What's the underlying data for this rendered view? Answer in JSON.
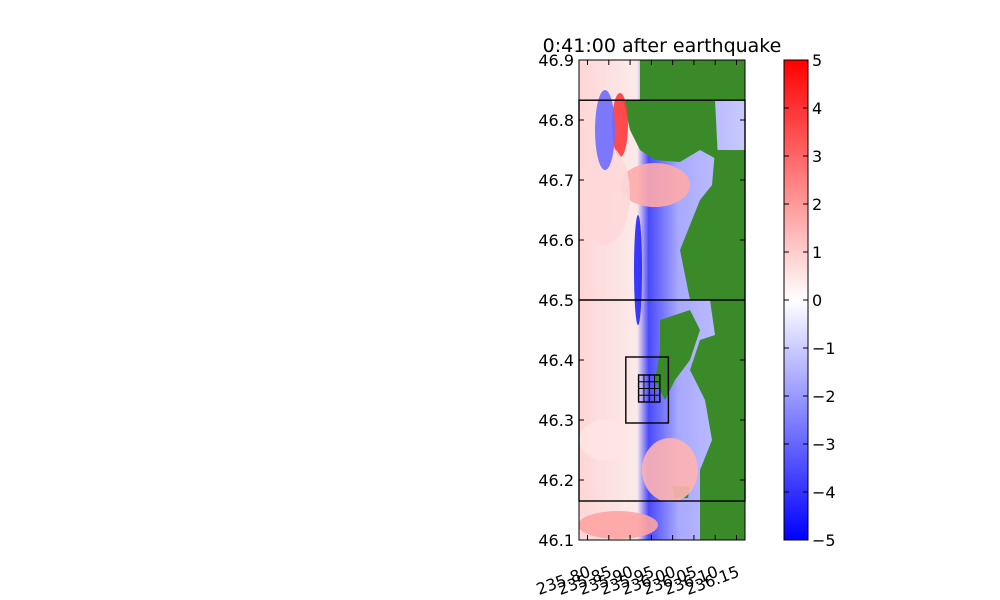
{
  "chart_data": {
    "type": "heatmap",
    "title": "0:41:00 after earthquake",
    "xlabel": "",
    "ylabel": "",
    "xlim": [
      235.78,
      236.17
    ],
    "ylim": [
      46.1,
      46.9
    ],
    "x_ticks": [
      "235.80",
      "235.85",
      "235.90",
      "235.95",
      "236.00",
      "236.05",
      "236.10",
      "236.15"
    ],
    "x_tick_values": [
      235.8,
      235.85,
      235.9,
      235.95,
      236.0,
      236.05,
      236.1,
      236.15
    ],
    "y_ticks": [
      "46.1",
      "46.2",
      "46.3",
      "46.4",
      "46.5",
      "46.6",
      "46.7",
      "46.8",
      "46.9"
    ],
    "y_tick_values": [
      46.1,
      46.2,
      46.3,
      46.4,
      46.5,
      46.6,
      46.7,
      46.8,
      46.9
    ],
    "colorbar": {
      "min": -5,
      "max": 5,
      "ticks": [
        "5",
        "4",
        "3",
        "2",
        "1",
        "0",
        "−1",
        "−2",
        "−3",
        "−4",
        "−5"
      ],
      "tick_values": [
        5,
        4,
        3,
        2,
        1,
        0,
        -1,
        -2,
        -3,
        -4,
        -5
      ],
      "colors": {
        "low": "#0000ff",
        "mid": "#ffffff",
        "high": "#ff0000"
      }
    },
    "land_color": "#3a8a2a",
    "grid_boxes": [
      {
        "x0": 235.78,
        "x1": 236.17,
        "y0": 46.165,
        "y1": 46.833
      },
      {
        "x0": 235.78,
        "x1": 236.17,
        "y0": 46.5,
        "y1": 46.5
      },
      {
        "x0": 235.89,
        "x1": 235.99,
        "y0": 46.295,
        "y1": 46.405
      },
      {
        "x0": 235.92,
        "x1": 235.97,
        "y0": 46.33,
        "y1": 46.375
      }
    ]
  }
}
